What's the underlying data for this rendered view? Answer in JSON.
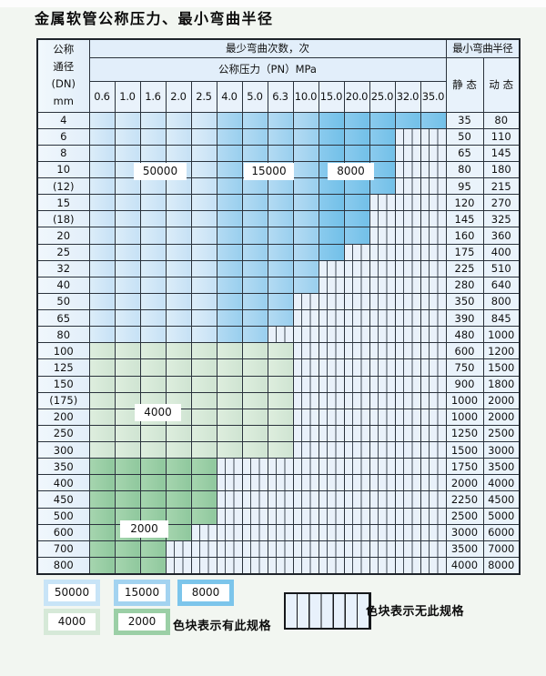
{
  "title": "金属软管公称压力、最小弯曲半径",
  "table": {
    "corner_header": [
      "公称",
      "通径",
      "(DN)",
      "mm"
    ],
    "bend_times_header": "最少弯曲次数，次",
    "bend_radius_header": "最小弯曲半径",
    "pressure_header": "公称压力（PN）MPa",
    "pressures": [
      "0.6",
      "1.0",
      "1.6",
      "2.0",
      "2.5",
      "4.0",
      "5.0",
      "6.3",
      "10.0",
      "15.0",
      "20.0",
      "25.0",
      "32.0",
      "35.0"
    ],
    "static_header": "静 态",
    "dynamic_header": "动 态",
    "cell_legend": {
      "L": "50000 cycles",
      "M": "15000 cycles",
      "D": "8000 cycles",
      "4": "4000 cycles",
      "2": "2000 cycles",
      "H": "no specification (hatched)"
    },
    "rows": [
      {
        "dn": "4",
        "cells": "LLLLLMMMMDDDDD",
        "static": "35",
        "dynamic": "80"
      },
      {
        "dn": "6",
        "cells": "LLLLLMMMMDDDHH",
        "static": "50",
        "dynamic": "110"
      },
      {
        "dn": "8",
        "cells": "LLLLLMMMMDDDHH",
        "static": "65",
        "dynamic": "145"
      },
      {
        "dn": "10",
        "cells": "LLLLLMMMMDDDHH",
        "static": "80",
        "dynamic": "180"
      },
      {
        "dn": "(12)",
        "cells": "LLLLLMMMMDDDHH",
        "static": "95",
        "dynamic": "215"
      },
      {
        "dn": "15",
        "cells": "LLLLLMMMMDDHHH",
        "static": "120",
        "dynamic": "270"
      },
      {
        "dn": "(18)",
        "cells": "LLLLLMMMMDDHHH",
        "static": "145",
        "dynamic": "325"
      },
      {
        "dn": "20",
        "cells": "LLLLLMMMMDDHHH",
        "static": "160",
        "dynamic": "360"
      },
      {
        "dn": "25",
        "cells": "LLLLLMMMMDHHHH",
        "static": "175",
        "dynamic": "400"
      },
      {
        "dn": "32",
        "cells": "LLLLLMMMMHHHHH",
        "static": "225",
        "dynamic": "510"
      },
      {
        "dn": "40",
        "cells": "LLLLLMMMMHHHHH",
        "static": "280",
        "dynamic": "640"
      },
      {
        "dn": "50",
        "cells": "LLLLLMMMHHHHHH",
        "static": "350",
        "dynamic": "800"
      },
      {
        "dn": "65",
        "cells": "LLLLLMMMHHHHHH",
        "static": "390",
        "dynamic": "845"
      },
      {
        "dn": "80",
        "cells": "LLLLLMMHHHHHHH",
        "static": "480",
        "dynamic": "1000"
      },
      {
        "dn": "100",
        "cells": "44444444HHHHHH",
        "static": "600",
        "dynamic": "1200"
      },
      {
        "dn": "125",
        "cells": "44444444HHHHHH",
        "static": "750",
        "dynamic": "1500"
      },
      {
        "dn": "150",
        "cells": "44444444HHHHHH",
        "static": "900",
        "dynamic": "1800"
      },
      {
        "dn": "(175)",
        "cells": "44444444HHHHHH",
        "static": "1000",
        "dynamic": "2000"
      },
      {
        "dn": "200",
        "cells": "44444444HHHHHH",
        "static": "1000",
        "dynamic": "2000"
      },
      {
        "dn": "250",
        "cells": "44444444HHHHHH",
        "static": "1250",
        "dynamic": "2500"
      },
      {
        "dn": "300",
        "cells": "44444444HHHHHH",
        "static": "1500",
        "dynamic": "3000"
      },
      {
        "dn": "350",
        "cells": "22222HHHHHHHHH",
        "static": "1750",
        "dynamic": "3500"
      },
      {
        "dn": "400",
        "cells": "22222HHHHHHHHH",
        "static": "2000",
        "dynamic": "4000"
      },
      {
        "dn": "450",
        "cells": "22222HHHHHHHHH",
        "static": "2250",
        "dynamic": "4500"
      },
      {
        "dn": "500",
        "cells": "22222HHHHHHHHH",
        "static": "2500",
        "dynamic": "5000"
      },
      {
        "dn": "600",
        "cells": "2222HHHHHHHHHH",
        "static": "3000",
        "dynamic": "6000"
      },
      {
        "dn": "700",
        "cells": "222HHHHHHHHHHH",
        "static": "3500",
        "dynamic": "7000"
      },
      {
        "dn": "800",
        "cells": "222HHHHHHHHHHH",
        "static": "4000",
        "dynamic": "8000"
      }
    ]
  },
  "overlays": {
    "l50000": "50000",
    "l15000": "15000",
    "l8000": "8000",
    "l4000": "4000",
    "l2000": "2000"
  },
  "legend": {
    "items": [
      {
        "value": "50000",
        "color": "#c8e4f7"
      },
      {
        "value": "15000",
        "color": "#a3d3f0"
      },
      {
        "value": "8000",
        "color": "#7cc5eb"
      },
      {
        "value": "4000",
        "color": "#d6e9d8"
      },
      {
        "value": "2000",
        "color": "#9bcfa6"
      }
    ],
    "has_spec_text": "色块表示有此规格",
    "no_spec_text": "色块表示无此规格"
  },
  "colors": {
    "cycles_50000": "#cde5f6",
    "cycles_15000": "#a3d3f0",
    "cycles_8000": "#7cc5eb",
    "cycles_4000": "#d6e9d8",
    "cycles_2000": "#9bcfa6",
    "hatch_bg": "#e9f1fa",
    "header_bg": "#e2eefa",
    "grid_border": "#2a323c"
  }
}
